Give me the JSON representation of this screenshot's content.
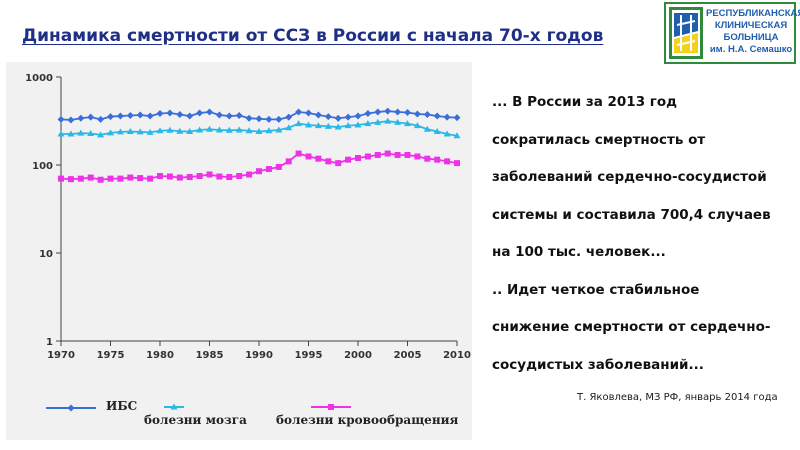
{
  "slide": {
    "title": "Динамика смертности от ССЗ в России с начала 70-х годов",
    "logo": {
      "lines": [
        "РЕСПУБЛИКАНСКАЯ",
        "КЛИНИЧЕСКАЯ",
        "БОЛЬНИЦА",
        "им. Н.А. Семашко"
      ],
      "colors": {
        "border": "#2f8a3b",
        "blue": "#1f5fae",
        "yellow": "#f2d21b"
      }
    },
    "quote_lines": [
      "... В России за 2013 год",
      "сократилась смертность от",
      "заболеваний сердечно-сосудистой",
      "системы и составила 700,4 случаев",
      "на 100 тыс. человек...",
      ".. Идет четкое стабильное",
      "снижение смертности от сердечно-",
      "сосудистых заболеваний..."
    ],
    "source": "Т. Яковлева, МЗ РФ, январь 2014 года"
  },
  "chart_data": {
    "type": "line",
    "title": "",
    "xlabel": "",
    "ylabel": "",
    "yscale": "log",
    "ylim": [
      1,
      1000
    ],
    "y_ticks": [
      {
        "value": 1,
        "label": "1"
      },
      {
        "value": 10,
        "label": "10"
      },
      {
        "value": 100,
        "label": "100"
      },
      {
        "value": 1000,
        "label": "1000"
      }
    ],
    "xlim": [
      1970,
      2010
    ],
    "x_ticks": [
      1970,
      1975,
      1980,
      1985,
      1990,
      1995,
      2000,
      2005,
      2010
    ],
    "grid": false,
    "legend_position": "bottom",
    "x": [
      1970,
      1971,
      1972,
      1973,
      1974,
      1975,
      1976,
      1977,
      1978,
      1979,
      1980,
      1981,
      1982,
      1983,
      1984,
      1985,
      1986,
      1987,
      1988,
      1989,
      1990,
      1991,
      1992,
      1993,
      1994,
      1995,
      1996,
      1997,
      1998,
      1999,
      2000,
      2001,
      2002,
      2003,
      2004,
      2005,
      2006,
      2007,
      2008,
      2009,
      2010
    ],
    "series": [
      {
        "name": "ИБС",
        "color": "#3a6fd8",
        "marker": "diamond",
        "values": [
          330,
          325,
          340,
          350,
          330,
          355,
          360,
          365,
          370,
          360,
          385,
          390,
          375,
          360,
          390,
          400,
          370,
          360,
          365,
          340,
          335,
          330,
          330,
          350,
          400,
          390,
          370,
          355,
          340,
          350,
          360,
          385,
          400,
          410,
          400,
          395,
          380,
          375,
          360,
          350,
          345
        ]
      },
      {
        "name": "болезни мозга",
        "color": "#2ab8e6",
        "marker": "triangle",
        "values": [
          225,
          225,
          230,
          228,
          220,
          232,
          238,
          240,
          238,
          235,
          245,
          248,
          242,
          240,
          250,
          255,
          250,
          248,
          250,
          245,
          240,
          245,
          250,
          265,
          295,
          285,
          280,
          275,
          270,
          280,
          285,
          295,
          305,
          315,
          305,
          295,
          280,
          255,
          240,
          225,
          215
        ]
      },
      {
        "name": "болезни кровообращения",
        "color": "#ee32e8",
        "marker": "square",
        "values": [
          70,
          69,
          70,
          72,
          68,
          70,
          70,
          72,
          71,
          70,
          75,
          74,
          72,
          73,
          75,
          78,
          74,
          73,
          75,
          78,
          85,
          90,
          95,
          110,
          135,
          125,
          118,
          110,
          105,
          115,
          120,
          125,
          130,
          135,
          130,
          130,
          125,
          118,
          115,
          110,
          105
        ]
      }
    ]
  }
}
